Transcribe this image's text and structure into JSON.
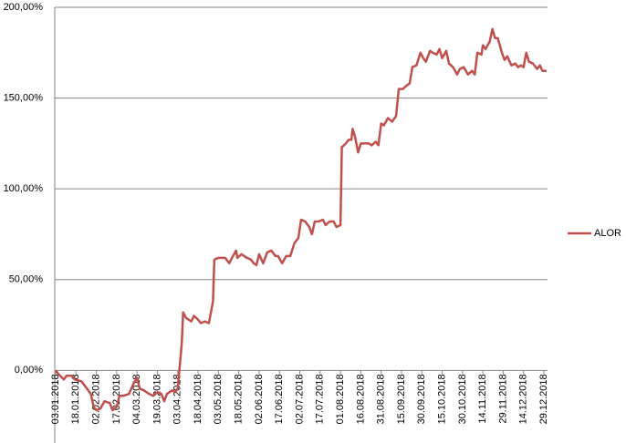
{
  "chart_data": {
    "type": "line",
    "x": [
      "03.01.2018",
      "05.01.2018",
      "09.01.2018",
      "11.01.2018",
      "15.01.2018",
      "17.01.2018",
      "22.01.2018",
      "25.01.2018",
      "29.01.2018",
      "31.01.2018",
      "02.02.2018",
      "05.02.2018",
      "08.02.2018",
      "12.02.2018",
      "14.02.2018",
      "17.02.2018",
      "19.02.2018",
      "22.02.2018",
      "26.02.2018",
      "01.03.2018",
      "04.03.2018",
      "06.03.2018",
      "09.03.2018",
      "13.03.2018",
      "16.03.2018",
      "19.03.2018",
      "22.03.2018",
      "24.03.2018",
      "26.03.2018",
      "30.03.2018",
      "01.04.2018",
      "03.04.2018",
      "06.04.2018",
      "07.04.2018",
      "09.04.2018",
      "13.04.2018",
      "15.04.2018",
      "18.04.2018",
      "20.04.2018",
      "23.04.2018",
      "26.04.2018",
      "29.04.2018",
      "30.04.2018",
      "03.05.2018",
      "06.05.2018",
      "08.05.2018",
      "11.05.2018",
      "13.05.2018",
      "16.05.2018",
      "17.05.2018",
      "20.05.2018",
      "24.05.2018",
      "27.05.2018",
      "29.05.2018",
      "31.05.2018",
      "02.06.2018",
      "05.06.2018",
      "08.06.2018",
      "11.06.2018",
      "14.06.2018",
      "16.06.2018",
      "19.06.2018",
      "22.06.2018",
      "25.06.2018",
      "28.06.2018",
      "01.07.2018",
      "03.07.2018",
      "06.07.2018",
      "09.07.2018",
      "11.07.2018",
      "13.07.2018",
      "16.07.2018",
      "19.07.2018",
      "21.07.2018",
      "24.07.2018",
      "27.07.2018",
      "29.07.2018",
      "01.08.2018",
      "02.08.2018",
      "05.08.2018",
      "07.08.2018",
      "09.08.2018",
      "10.08.2018",
      "12.08.2018",
      "14.08.2018",
      "16.08.2018",
      "19.08.2018",
      "22.08.2018",
      "24.08.2018",
      "27.08.2018",
      "29.08.2018",
      "31.08.2018",
      "02.09.2018",
      "05.09.2018",
      "08.09.2018",
      "11.09.2018",
      "13.09.2018",
      "16.09.2018",
      "19.09.2018",
      "21.09.2018",
      "23.09.2018",
      "26.09.2018",
      "29.09.2018",
      "01.10.2018",
      "03.10.2018",
      "06.10.2018",
      "08.10.2018",
      "11.10.2018",
      "13.10.2018",
      "15.10.2018",
      "18.10.2018",
      "20.10.2018",
      "23.10.2018",
      "26.10.2018",
      "28.10.2018",
      "31.10.2018",
      "03.11.2018",
      "06.11.2018",
      "08.11.2018",
      "10.11.2018",
      "13.11.2018",
      "14.11.2018",
      "16.11.2018",
      "19.11.2018",
      "21.11.2018",
      "23.11.2018",
      "25.11.2018",
      "28.11.2018",
      "30.11.2018",
      "02.12.2018",
      "05.12.2018",
      "08.12.2018",
      "10.12.2018",
      "12.12.2018",
      "14.12.2018",
      "16.12.2018",
      "18.12.2018",
      "21.12.2018",
      "24.12.2018",
      "26.12.2018",
      "28.12.2018",
      "31.12.2018"
    ],
    "series": [
      {
        "name": "ALOR",
        "color": "#c0504d",
        "values": [
          0,
          -2,
          -5,
          -3,
          -3,
          -5,
          -6,
          -9,
          -13,
          -20,
          -22,
          -21,
          -17,
          -18,
          -22,
          -20,
          -14,
          -14,
          -13,
          -8,
          -4,
          -10,
          -11,
          -13,
          -14,
          -12,
          -13,
          -17,
          -13,
          -11,
          -12,
          -10,
          15,
          32,
          29,
          27,
          30,
          28,
          26,
          27,
          26,
          38,
          61,
          62,
          62,
          62,
          59,
          62,
          66,
          62,
          64,
          62,
          61,
          59,
          58,
          64,
          59,
          65,
          66,
          63,
          63,
          59,
          63,
          63,
          70,
          73,
          83,
          82,
          79,
          75,
          82,
          82,
          83,
          80,
          82,
          82,
          79,
          80,
          123,
          125,
          127,
          127,
          133,
          128,
          120,
          125,
          125,
          125,
          124,
          126,
          124,
          136,
          135,
          139,
          137,
          140,
          155,
          155,
          157,
          158,
          167,
          168,
          175,
          172,
          170,
          176,
          175,
          174,
          177,
          172,
          176,
          169,
          167,
          163,
          166,
          167,
          163,
          165,
          163,
          175,
          174,
          179,
          177,
          181,
          188,
          183,
          183,
          175,
          171,
          173,
          168,
          169,
          167,
          168,
          167,
          175,
          170,
          169,
          166,
          168,
          165,
          165
        ]
      }
    ],
    "xlim": [
      "03.01.2018",
      "31.12.2018"
    ],
    "xticks": [
      "03.01.2018",
      "18.01.2018",
      "02.02.2018",
      "17.02.2018",
      "04.03.2018",
      "19.03.2018",
      "03.04.2018",
      "18.04.2018",
      "03.05.2018",
      "18.05.2018",
      "02.06.2018",
      "17.06.2018",
      "02.07.2018",
      "17.07.2018",
      "01.08.2018",
      "16.08.2018",
      "31.08.2018",
      "15.09.2018",
      "30.09.2018",
      "15.10.2018",
      "30.10.2018",
      "14.11.2018",
      "29.11.2018",
      "14.12.2018",
      "29.12.2018"
    ],
    "ylim": [
      -40,
      200
    ],
    "yticks": [
      {
        "value": 0,
        "label": "0,00%"
      },
      {
        "value": 50,
        "label": "50,00%"
      },
      {
        "value": 100,
        "label": "100,00%"
      },
      {
        "value": 150,
        "label": "150,00%"
      },
      {
        "value": 200,
        "label": "200,00%"
      }
    ],
    "grid": true,
    "legend": "right"
  }
}
